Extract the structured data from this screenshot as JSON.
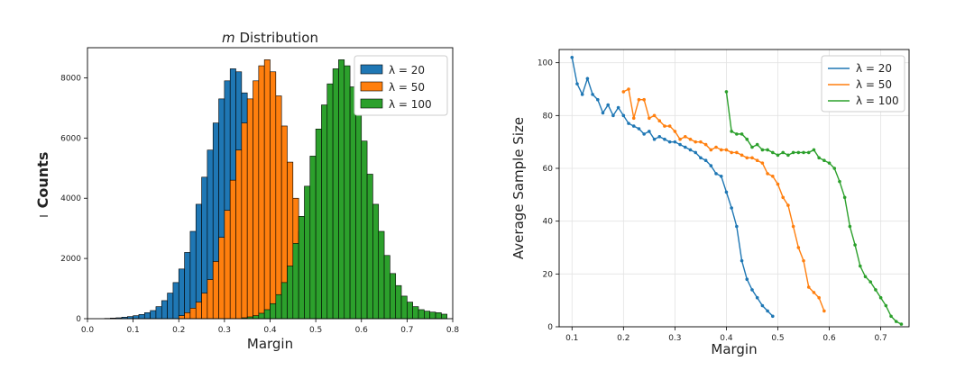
{
  "chart_data": [
    {
      "type": "bar",
      "title_italic": "m",
      "title_rest": " Distribution",
      "xlabel": "Margin",
      "ylabel": "Counts",
      "ylabel_mark": "I",
      "xlim": [
        0.0,
        0.8
      ],
      "ylim": [
        0,
        9000
      ],
      "xticks": [
        0.0,
        0.1,
        0.2,
        0.3,
        0.4,
        0.5,
        0.6,
        0.7,
        0.8
      ],
      "xtick_labels": [
        "0.0",
        "0.1",
        "0.2",
        "0.3",
        "0.4",
        "0.5",
        "0.6",
        "0.7",
        "0.8"
      ],
      "yticks": [
        0,
        2000,
        4000,
        6000,
        8000
      ],
      "ytick_labels": [
        "0",
        "2000",
        "4000",
        "6000",
        "8000"
      ],
      "bin_width": 0.0125,
      "legend_position": "top-right",
      "series": [
        {
          "name": "λ = 20",
          "color": "#1f77b4",
          "bin_start": 0.0375,
          "values": [
            10,
            20,
            30,
            50,
            70,
            100,
            140,
            200,
            270,
            400,
            600,
            850,
            1200,
            1650,
            2200,
            2900,
            3800,
            4700,
            5600,
            6500,
            7300,
            7900,
            8300,
            8200,
            7500,
            6500,
            5300,
            4000,
            2800,
            1800,
            1100,
            600,
            300,
            150,
            60
          ]
        },
        {
          "name": "λ = 50",
          "color": "#ff7f0e",
          "bin_start": 0.2,
          "values": [
            100,
            200,
            350,
            550,
            850,
            1300,
            1900,
            2700,
            3600,
            4600,
            5600,
            6500,
            7300,
            7900,
            8400,
            8600,
            8200,
            7400,
            6400,
            5200,
            4000,
            2900,
            2000,
            1300,
            800,
            450,
            250,
            120,
            60
          ]
        },
        {
          "name": "λ = 100",
          "color": "#2ca02c",
          "bin_start": 0.3375,
          "values": [
            30,
            60,
            100,
            180,
            300,
            500,
            800,
            1200,
            1750,
            2500,
            3400,
            4400,
            5400,
            6300,
            7100,
            7800,
            8300,
            8600,
            8400,
            7700,
            6900,
            5900,
            4800,
            3800,
            2900,
            2100,
            1500,
            1100,
            750,
            550,
            400,
            300,
            250,
            220,
            200,
            150
          ]
        }
      ]
    },
    {
      "type": "line",
      "title": "",
      "xlabel": "Margin",
      "ylabel": "Average Sample Size",
      "xlim": [
        0.075,
        0.755
      ],
      "ylim": [
        0,
        105
      ],
      "xticks": [
        0.1,
        0.2,
        0.3,
        0.4,
        0.5,
        0.6,
        0.7
      ],
      "xtick_labels": [
        "0.1",
        "0.2",
        "0.3",
        "0.4",
        "0.5",
        "0.6",
        "0.7"
      ],
      "yticks": [
        0,
        20,
        40,
        60,
        80,
        100
      ],
      "ytick_labels": [
        "0",
        "20",
        "40",
        "60",
        "80",
        "100"
      ],
      "grid": true,
      "legend_position": "top-right",
      "series": [
        {
          "name": "λ = 20",
          "color": "#1f77b4",
          "x": [
            0.1,
            0.11,
            0.12,
            0.13,
            0.14,
            0.15,
            0.16,
            0.17,
            0.18,
            0.19,
            0.2,
            0.21,
            0.22,
            0.23,
            0.24,
            0.25,
            0.26,
            0.27,
            0.28,
            0.29,
            0.3,
            0.31,
            0.32,
            0.33,
            0.34,
            0.35,
            0.36,
            0.37,
            0.38,
            0.39,
            0.4,
            0.41,
            0.42,
            0.43,
            0.44,
            0.45,
            0.46,
            0.47,
            0.48,
            0.49
          ],
          "y": [
            102,
            92,
            88,
            94,
            88,
            86,
            81,
            84,
            80,
            83,
            80,
            77,
            76,
            75,
            73,
            74,
            71,
            72,
            71,
            70,
            70,
            69,
            68,
            67,
            66,
            64,
            63,
            61,
            58,
            57,
            51,
            45,
            38,
            25,
            18,
            14,
            11,
            8,
            6,
            4
          ]
        },
        {
          "name": "λ = 50",
          "color": "#ff7f0e",
          "x": [
            0.2,
            0.21,
            0.22,
            0.23,
            0.24,
            0.25,
            0.26,
            0.27,
            0.28,
            0.29,
            0.3,
            0.31,
            0.32,
            0.33,
            0.34,
            0.35,
            0.36,
            0.37,
            0.38,
            0.39,
            0.4,
            0.41,
            0.42,
            0.43,
            0.44,
            0.45,
            0.46,
            0.47,
            0.48,
            0.49,
            0.5,
            0.51,
            0.52,
            0.53,
            0.54,
            0.55,
            0.56,
            0.57,
            0.58,
            0.59
          ],
          "y": [
            89,
            90,
            79,
            86,
            86,
            79,
            80,
            78,
            76,
            76,
            74,
            71,
            72,
            71,
            70,
            70,
            69,
            67,
            68,
            67,
            67,
            66,
            66,
            65,
            64,
            64,
            63,
            62,
            58,
            57,
            54,
            49,
            46,
            38,
            30,
            25,
            15,
            13,
            11,
            6
          ]
        },
        {
          "name": "λ = 100",
          "color": "#2ca02c",
          "x": [
            0.4,
            0.41,
            0.42,
            0.43,
            0.44,
            0.45,
            0.46,
            0.47,
            0.48,
            0.49,
            0.5,
            0.51,
            0.52,
            0.53,
            0.54,
            0.55,
            0.56,
            0.57,
            0.58,
            0.59,
            0.6,
            0.61,
            0.62,
            0.63,
            0.64,
            0.65,
            0.66,
            0.67,
            0.68,
            0.69,
            0.7,
            0.71,
            0.72,
            0.73,
            0.74
          ],
          "y": [
            89,
            74,
            73,
            73,
            71,
            68,
            69,
            67,
            67,
            66,
            65,
            66,
            65,
            66,
            66,
            66,
            66,
            67,
            64,
            63,
            62,
            60,
            55,
            49,
            38,
            31,
            23,
            19,
            17,
            14,
            11,
            8,
            4,
            2,
            1
          ]
        }
      ]
    }
  ]
}
